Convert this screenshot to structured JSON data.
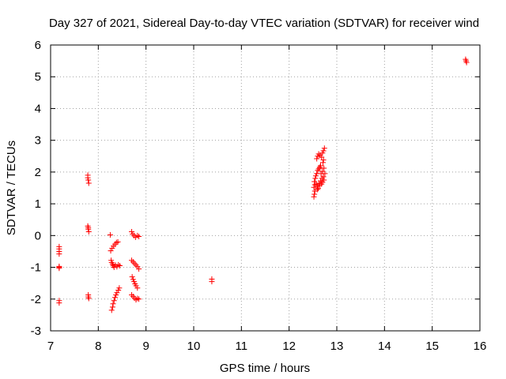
{
  "chart_data": {
    "type": "scatter",
    "title": "Day 327 of 2021, Sidereal Day-to-day VTEC variation (SDTVAR) for receiver wind",
    "xlabel": "GPS time / hours",
    "ylabel": "SDTVAR / TECUs",
    "xlim": [
      7,
      16
    ],
    "ylim": [
      -3,
      6
    ],
    "x_ticks": [
      "7",
      "8",
      "9",
      "10",
      "11",
      "12",
      "13",
      "14",
      "15",
      "16"
    ],
    "y_ticks": [
      "-3",
      "-2",
      "-1",
      "0",
      "1",
      "2",
      "3",
      "4",
      "5",
      "6"
    ],
    "grid": true,
    "marker": "+",
    "series": [
      {
        "name": "SDTVAR",
        "color": "#ff0000",
        "points": [
          [
            7.18,
            -0.35
          ],
          [
            7.18,
            -0.42
          ],
          [
            7.18,
            -0.5
          ],
          [
            7.18,
            -0.58
          ],
          [
            7.18,
            -0.97
          ],
          [
            7.18,
            -1.0
          ],
          [
            7.18,
            -1.03
          ],
          [
            7.18,
            -2.05
          ],
          [
            7.18,
            -2.12
          ],
          [
            7.78,
            1.9
          ],
          [
            7.78,
            1.82
          ],
          [
            7.79,
            1.75
          ],
          [
            7.8,
            1.65
          ],
          [
            7.78,
            0.3
          ],
          [
            7.79,
            0.25
          ],
          [
            7.79,
            0.2
          ],
          [
            7.8,
            0.12
          ],
          [
            7.79,
            -1.87
          ],
          [
            7.79,
            -1.93
          ],
          [
            7.8,
            -1.98
          ],
          [
            8.25,
            0.02
          ],
          [
            8.26,
            -0.48
          ],
          [
            8.29,
            -0.4
          ],
          [
            8.32,
            -0.33
          ],
          [
            8.35,
            -0.27
          ],
          [
            8.38,
            -0.22
          ],
          [
            8.41,
            -0.2
          ],
          [
            8.27,
            -0.78
          ],
          [
            8.28,
            -0.85
          ],
          [
            8.3,
            -0.9
          ],
          [
            8.31,
            -0.95
          ],
          [
            8.33,
            -1.0
          ],
          [
            8.36,
            -0.93
          ],
          [
            8.39,
            -0.98
          ],
          [
            8.42,
            -0.92
          ],
          [
            8.45,
            -0.95
          ],
          [
            8.28,
            -2.35
          ],
          [
            8.3,
            -2.25
          ],
          [
            8.31,
            -2.15
          ],
          [
            8.33,
            -2.05
          ],
          [
            8.35,
            -1.95
          ],
          [
            8.37,
            -1.87
          ],
          [
            8.39,
            -1.8
          ],
          [
            8.42,
            -1.72
          ],
          [
            8.44,
            -1.65
          ],
          [
            8.7,
            0.12
          ],
          [
            8.72,
            0.05
          ],
          [
            8.75,
            0.0
          ],
          [
            8.78,
            -0.05
          ],
          [
            8.82,
            0.0
          ],
          [
            8.85,
            -0.03
          ],
          [
            8.7,
            -0.78
          ],
          [
            8.73,
            -0.83
          ],
          [
            8.76,
            -0.88
          ],
          [
            8.79,
            -0.93
          ],
          [
            8.82,
            -0.98
          ],
          [
            8.85,
            -1.05
          ],
          [
            8.71,
            -1.3
          ],
          [
            8.73,
            -1.38
          ],
          [
            8.75,
            -1.45
          ],
          [
            8.77,
            -1.52
          ],
          [
            8.79,
            -1.58
          ],
          [
            8.82,
            -1.65
          ],
          [
            8.7,
            -1.87
          ],
          [
            8.73,
            -1.92
          ],
          [
            8.76,
            -1.97
          ],
          [
            8.79,
            -2.02
          ],
          [
            8.82,
            -1.98
          ],
          [
            8.85,
            -2.0
          ],
          [
            10.38,
            -1.37
          ],
          [
            10.38,
            -1.45
          ],
          [
            12.52,
            1.22
          ],
          [
            12.53,
            1.3
          ],
          [
            12.54,
            1.4
          ],
          [
            12.52,
            1.52
          ],
          [
            12.54,
            1.6
          ],
          [
            12.53,
            1.7
          ],
          [
            12.55,
            1.8
          ],
          [
            12.56,
            1.88
          ],
          [
            12.58,
            1.95
          ],
          [
            12.6,
            2.05
          ],
          [
            12.62,
            2.1
          ],
          [
            12.64,
            2.15
          ],
          [
            12.66,
            2.2
          ],
          [
            12.57,
            1.62
          ],
          [
            12.6,
            1.55
          ],
          [
            12.63,
            1.65
          ],
          [
            12.66,
            1.72
          ],
          [
            12.69,
            1.8
          ],
          [
            12.72,
            1.85
          ],
          [
            12.67,
            1.95
          ],
          [
            12.7,
            2.02
          ],
          [
            12.73,
            2.12
          ],
          [
            12.58,
            2.42
          ],
          [
            12.6,
            2.5
          ],
          [
            12.62,
            2.57
          ],
          [
            12.65,
            2.53
          ],
          [
            12.68,
            2.47
          ],
          [
            12.7,
            2.6
          ],
          [
            12.72,
            2.67
          ],
          [
            12.74,
            2.75
          ],
          [
            12.71,
            2.3
          ],
          [
            12.72,
            2.38
          ],
          [
            12.59,
            1.45
          ],
          [
            12.61,
            1.48
          ],
          [
            12.64,
            1.58
          ],
          [
            12.68,
            1.62
          ],
          [
            12.7,
            1.68
          ],
          [
            12.73,
            1.75
          ],
          [
            12.75,
            1.95
          ],
          [
            15.7,
            5.55
          ],
          [
            15.71,
            5.5
          ],
          [
            15.72,
            5.45
          ]
        ]
      }
    ]
  }
}
